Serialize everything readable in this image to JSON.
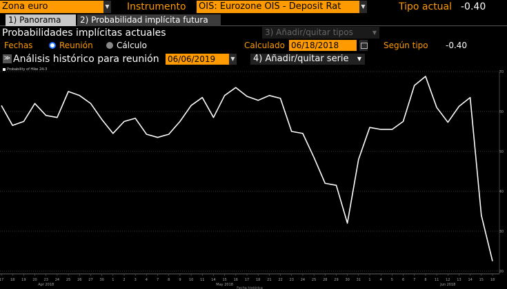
{
  "header": {
    "zone_value": "Zona euro",
    "instrument_label": "Instrumento",
    "instrument_value": "OIS: Eurozone OIS - Deposit Rat",
    "current_rate_label": "Tipo actual",
    "current_rate_value": "-0.40"
  },
  "tabs": [
    {
      "label": "1) Panorama",
      "active": true
    },
    {
      "label": "2) Probabilidad implícita futura",
      "active": false
    }
  ],
  "section": {
    "title": "Probabilidades implícitas actuales",
    "add_types": "3) Añadir/quitar tipos"
  },
  "filters": {
    "dates_label": "Fechas",
    "option_meeting": "Reunión",
    "option_calc": "Cálculo",
    "calculated_label": "Calculado",
    "calculated_date": "06/18/2018",
    "by_rate_label": "Según tipo",
    "by_rate_value": "-0.40"
  },
  "history": {
    "label": "Análisis histórico para reunión",
    "meeting_date": "06/06/2019",
    "add_series": "4) Añadir/quitar serie"
  },
  "colors": {
    "accent": "#ff9a00",
    "line": "#ffffff",
    "radio": "#1d6fff"
  },
  "chart_data": {
    "type": "line",
    "legend": "Probability of Hike 24-3",
    "xlabel": "Fecha histórica",
    "ylim": [
      20,
      70
    ],
    "yticks": [
      20,
      30,
      40,
      50,
      60,
      70
    ],
    "x": [
      "17",
      "18",
      "19",
      "20",
      "23",
      "24",
      "25",
      "26",
      "27",
      "30",
      "1",
      "2",
      "3",
      "4",
      "7",
      "8",
      "9",
      "10",
      "11",
      "14",
      "15",
      "16",
      "17",
      "18",
      "21",
      "22",
      "23",
      "24",
      "25",
      "28",
      "29",
      "30",
      "31",
      "1",
      "4",
      "5",
      "6",
      "7",
      "8",
      "11",
      "12",
      "13",
      "14",
      "15",
      "18"
    ],
    "month_labels": [
      {
        "text": "Apr 2018",
        "at": "23"
      },
      {
        "text": "May 2018",
        "at": "15"
      },
      {
        "text": "Jun 2018",
        "at": "12"
      }
    ],
    "series": [
      {
        "name": "Probability of Hike 24-3",
        "values": [
          61.5,
          56.5,
          57.5,
          62,
          59,
          58.5,
          65,
          64,
          62,
          58,
          54.5,
          57.5,
          58.3,
          54.3,
          53.5,
          54.3,
          57.5,
          61.5,
          63.5,
          58.5,
          64,
          66,
          63.8,
          62.8,
          64,
          63.3,
          55,
          54.5,
          48.5,
          42,
          41.5,
          32,
          48,
          56,
          55.5,
          55.5,
          57.5,
          66.5,
          68.8,
          61,
          57.3,
          61.3,
          63.5,
          34,
          22.5
        ]
      }
    ]
  }
}
